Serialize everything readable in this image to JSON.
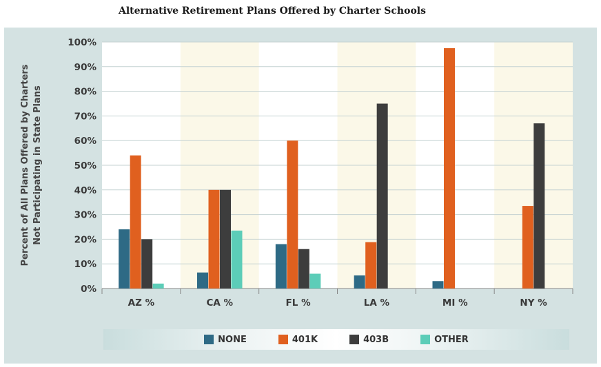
{
  "chart_data": {
    "type": "bar",
    "title": "Alternative Retirement Plans Offered by Charter Schools",
    "ylabel_line1": "Percent of All Plans Offered by Charters",
    "ylabel_line2": "Not Participating in State Plans",
    "xlabel": "",
    "ylim": [
      0,
      100
    ],
    "yticks": [
      "100%",
      "90%",
      "80%",
      "70%",
      "60%",
      "50%",
      "40%",
      "30%",
      "20%",
      "10%",
      "0%"
    ],
    "categories": [
      "AZ %",
      "CA %",
      "FL %",
      "LA %",
      "MI %",
      "NY %"
    ],
    "highlighted_categories": [
      "CA %",
      "LA %",
      "NY %"
    ],
    "series": [
      {
        "name": "NONE",
        "color": "#2e6a85",
        "values": [
          24,
          6.5,
          18,
          5.3,
          3,
          0
        ]
      },
      {
        "name": "401K",
        "color": "#e0601f",
        "values": [
          54,
          40,
          60,
          18.8,
          97.5,
          33.5
        ]
      },
      {
        "name": "403B",
        "color": "#3d3d3d",
        "values": [
          20,
          40,
          16,
          75,
          0,
          67
        ]
      },
      {
        "name": "OTHER",
        "color": "#5ccdb8",
        "values": [
          2,
          23.5,
          6,
          0,
          0,
          0
        ]
      }
    ],
    "legend_position": "bottom",
    "grid": true
  }
}
